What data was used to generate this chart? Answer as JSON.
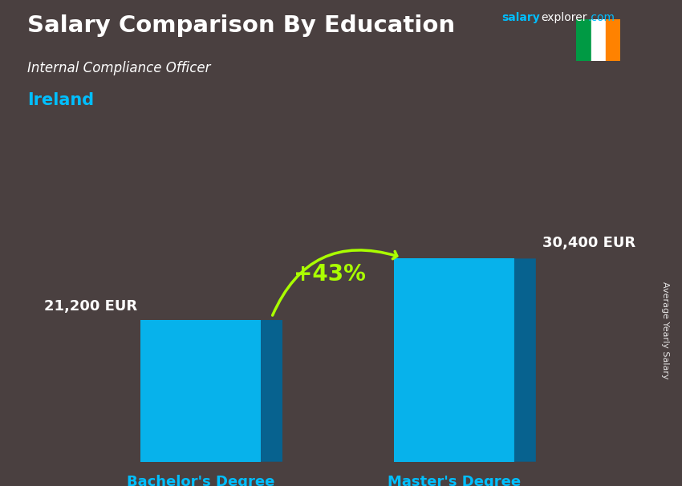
{
  "title": "Salary Comparison By Education",
  "subtitle": "Internal Compliance Officer",
  "country": "Ireland",
  "categories": [
    "Bachelor's Degree",
    "Master's Degree"
  ],
  "values": [
    21200,
    30400
  ],
  "value_labels": [
    "21,200 EUR",
    "30,400 EUR"
  ],
  "bar_color_main": "#00BFFF",
  "bar_color_light": "#5DDCFF",
  "bar_color_dark": "#0088BB",
  "bar_color_side": "#006699",
  "pct_change": "+43%",
  "pct_color": "#AAFF00",
  "ylabel": "Average Yearly Salary",
  "country_color": "#00BFFF",
  "bg_color": "#4a4040",
  "bar_positions": [
    0.3,
    0.68
  ],
  "bar_width": 0.18,
  "ylim": [
    0,
    40000
  ],
  "flag_green": "#009A44",
  "flag_white": "#FFFFFF",
  "flag_orange": "#FF8200",
  "website_salary_color": "#00BFFF",
  "website_text_color": "#FFFFFF"
}
